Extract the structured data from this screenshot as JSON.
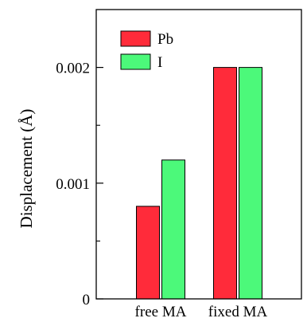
{
  "chart_data": {
    "type": "bar",
    "title": "",
    "xlabel": "",
    "ylabel": "Displacement (Å)",
    "categories": [
      "free MA",
      "fixed MA"
    ],
    "series": [
      {
        "name": "Pb",
        "values": [
          0.0008,
          0.002
        ],
        "color": "#ff2b3a"
      },
      {
        "name": "I",
        "values": [
          0.0012,
          0.002
        ],
        "color": "#4cf97a"
      }
    ],
    "ylim": [
      0,
      0.0025
    ],
    "yticks": [
      {
        "value": 0,
        "label": "0"
      },
      {
        "value": 0.001,
        "label": "0.001"
      },
      {
        "value": 0.002,
        "label": "0.002"
      }
    ],
    "yminor_ticks": [
      0.0005,
      0.0015
    ],
    "legend": "top-left",
    "grid": false
  }
}
